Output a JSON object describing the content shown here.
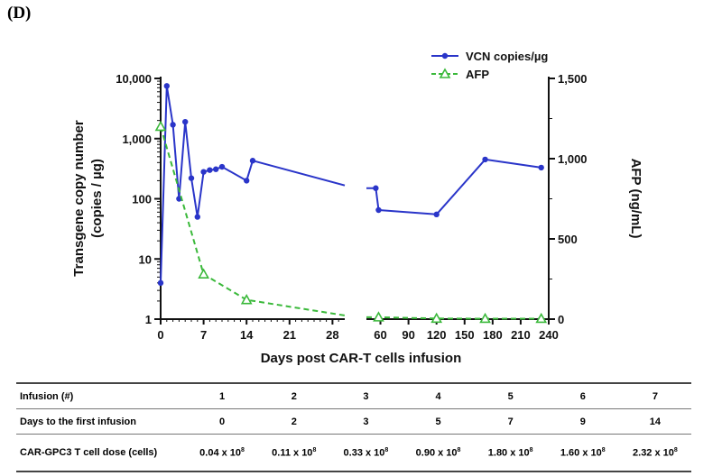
{
  "panel_label": "(D)",
  "chart_data": {
    "type": "line",
    "xlabel": "Days post CAR-T cells infusion",
    "ylabel_left_line1": "Transgene copy number",
    "ylabel_left_line2": "(copies / µg)",
    "ylabel_right": "AFP (ng/mL)",
    "x_ticks": [
      "0",
      "7",
      "14",
      "21",
      "28",
      "60",
      "90",
      "120",
      "150",
      "180",
      "210",
      "240"
    ],
    "x_segments": [
      {
        "range": [
          0,
          30
        ],
        "ticks": [
          0,
          7,
          14,
          21,
          28
        ]
      },
      {
        "range": [
          45,
          240
        ],
        "ticks": [
          60,
          90,
          120,
          150,
          180,
          210,
          240
        ]
      }
    ],
    "y_left": {
      "scale": "log",
      "ylim": [
        1,
        10000
      ],
      "ticks": [
        "1",
        "10",
        "100",
        "1,000",
        "10,000"
      ]
    },
    "y_right": {
      "scale": "linear",
      "ylim": [
        0,
        1500
      ],
      "ticks": [
        "0",
        "500",
        "1,000",
        "1,500"
      ]
    },
    "series": [
      {
        "name": "VCN copies/µg",
        "axis": "left",
        "color": "#2a35c9",
        "marker": "circle",
        "line": "solid",
        "points": [
          [
            0,
            4
          ],
          [
            1,
            7500
          ],
          [
            2,
            1700
          ],
          [
            3,
            100
          ],
          [
            4,
            1900
          ],
          [
            5,
            220
          ],
          [
            6,
            50
          ],
          [
            7,
            280
          ],
          [
            8,
            300
          ],
          [
            9,
            310
          ],
          [
            10,
            340
          ],
          [
            14,
            200
          ],
          [
            15,
            430
          ],
          [
            55,
            150
          ],
          [
            58,
            65
          ],
          [
            120,
            55
          ],
          [
            172,
            450
          ],
          [
            232,
            330
          ]
        ]
      },
      {
        "name": "AFP",
        "axis": "right",
        "color": "#3bb93b",
        "marker": "triangle-open",
        "line": "dashed",
        "points": [
          [
            0,
            1200
          ],
          [
            7,
            280
          ],
          [
            14,
            120
          ],
          [
            58,
            12
          ],
          [
            120,
            4
          ],
          [
            172,
            3
          ],
          [
            232,
            3
          ]
        ]
      }
    ]
  },
  "table": {
    "rows": [
      {
        "label": "Infusion (#)",
        "cells": [
          "1",
          "2",
          "3",
          "4",
          "5",
          "6",
          "7"
        ]
      },
      {
        "label": "Days to the first infusion",
        "cells": [
          "0",
          "2",
          "3",
          "5",
          "7",
          "9",
          "14"
        ]
      },
      {
        "label": "CAR-GPC3 T cell dose (cells)",
        "cells": [
          "0.04 x 10",
          "0.11 x 10",
          "0.33 x 10",
          "0.90 x 10",
          "1.80 x 10",
          "1.60 x 10",
          "2.32 x 10"
        ],
        "exponent": "8"
      }
    ]
  }
}
